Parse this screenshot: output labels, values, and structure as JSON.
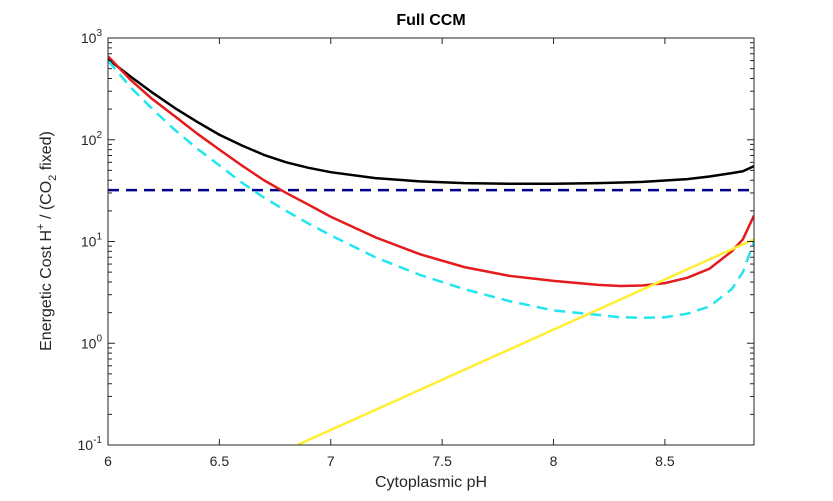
{
  "chart_data": {
    "type": "line",
    "title": "Full CCM",
    "xlabel": "Cytoplasmic pH",
    "ylabel": {
      "prefix": "Energetic Cost H",
      "sup": "+",
      "mid": " / (CO",
      "sub": "2",
      "suffix": " fixed)"
    },
    "xlim": [
      6,
      8.9
    ],
    "ylim": [
      0.1,
      1000
    ],
    "yscale": "log",
    "x_ticks": [
      {
        "value": 6,
        "label": "6"
      },
      {
        "value": 6.5,
        "label": "6.5"
      },
      {
        "value": 7,
        "label": "7"
      },
      {
        "value": 7.5,
        "label": "7.5"
      },
      {
        "value": 8,
        "label": "8"
      },
      {
        "value": 8.5,
        "label": "8.5"
      }
    ],
    "y_ticks": [
      {
        "value": 0.1,
        "base": "10",
        "exp": "-1"
      },
      {
        "value": 1,
        "base": "10",
        "exp": "0"
      },
      {
        "value": 10,
        "base": "10",
        "exp": "1"
      },
      {
        "value": 100,
        "base": "10",
        "exp": "2"
      },
      {
        "value": 1000,
        "base": "10",
        "exp": "3"
      }
    ],
    "grid": false,
    "legend": "none",
    "series": [
      {
        "color": "#000000",
        "dash": "solid",
        "x": [
          6.0,
          6.1,
          6.2,
          6.3,
          6.4,
          6.5,
          6.6,
          6.7,
          6.8,
          6.9,
          7.0,
          7.2,
          7.4,
          7.6,
          7.8,
          8.0,
          8.2,
          8.4,
          8.6,
          8.7,
          8.8,
          8.85,
          8.9
        ],
        "y": [
          620,
          420,
          290,
          205,
          150,
          112,
          88,
          71,
          60,
          53,
          48,
          42,
          39,
          37.5,
          37,
          37,
          37.5,
          38.5,
          41,
          43.5,
          47,
          49,
          55
        ]
      },
      {
        "color": "#00008b",
        "dash": "dashed",
        "x": [
          6.0,
          8.9
        ],
        "y": [
          32,
          32
        ]
      },
      {
        "color": "#e41a1c",
        "dash": "solid",
        "x": [
          6.0,
          6.1,
          6.2,
          6.3,
          6.4,
          6.5,
          6.6,
          6.7,
          6.8,
          6.9,
          7.0,
          7.2,
          7.4,
          7.6,
          7.8,
          8.0,
          8.2,
          8.3,
          8.4,
          8.5,
          8.6,
          8.7,
          8.8,
          8.85,
          8.9
        ],
        "y": [
          660,
          390,
          250,
          170,
          115,
          80,
          56,
          40,
          30,
          23,
          17.5,
          11,
          7.5,
          5.6,
          4.6,
          4.1,
          3.75,
          3.65,
          3.7,
          3.9,
          4.4,
          5.4,
          8,
          10.5,
          18
        ]
      },
      {
        "color": "#22e6ee",
        "dash": "dashed",
        "x": [
          6.0,
          6.1,
          6.2,
          6.3,
          6.4,
          6.5,
          6.6,
          6.7,
          6.8,
          6.9,
          7.0,
          7.2,
          7.4,
          7.6,
          7.8,
          8.0,
          8.2,
          8.3,
          8.4,
          8.5,
          8.6,
          8.7,
          8.8,
          8.85,
          8.9
        ],
        "y": [
          600,
          330,
          200,
          125,
          82,
          56,
          38,
          27,
          20,
          15,
          11.5,
          7,
          4.7,
          3.4,
          2.6,
          2.1,
          1.9,
          1.8,
          1.78,
          1.8,
          1.95,
          2.3,
          3.4,
          5,
          10
        ]
      },
      {
        "color": "#ffee33",
        "dash": "solid",
        "x": [
          6.85,
          8.9
        ],
        "y": [
          0.1,
          10.5
        ]
      }
    ]
  }
}
